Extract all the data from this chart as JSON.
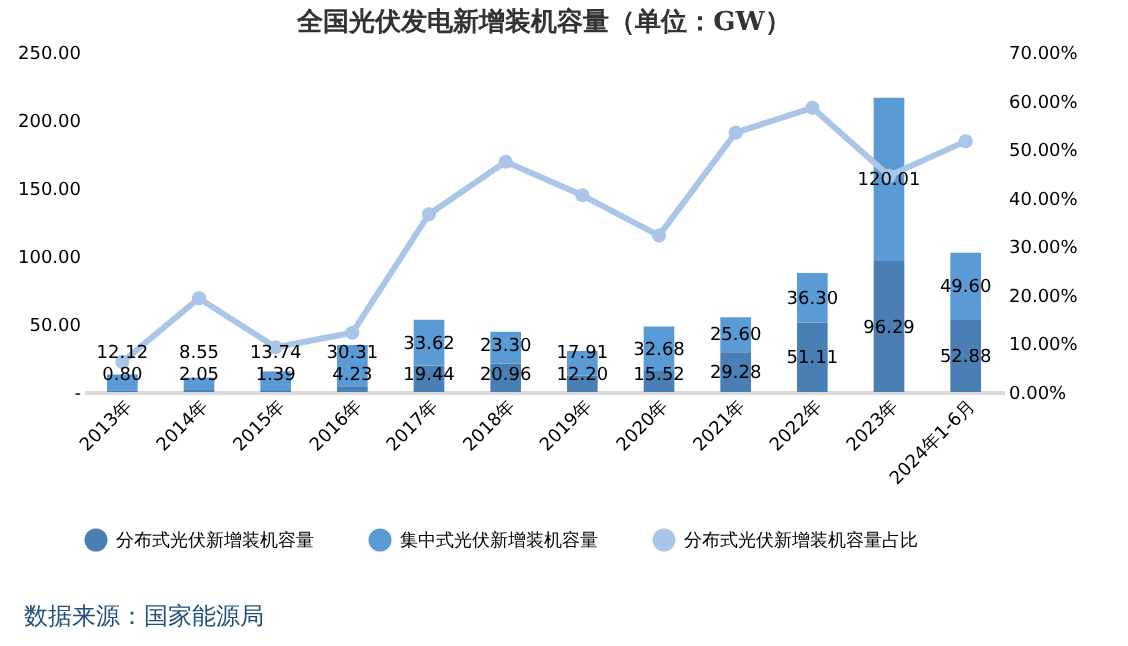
{
  "chart_data": {
    "type": "bar",
    "title": "全国光伏发电新增装机容量（单位：GW）",
    "categories": [
      "2013年",
      "2014年",
      "2015年",
      "2016年",
      "2017年",
      "2018年",
      "2019年",
      "2020年",
      "2021年",
      "2022年",
      "2023年",
      "2024年1-6月"
    ],
    "stacked": true,
    "series": [
      {
        "name": "分布式光伏新增装机容量",
        "color": "#4a7fb5",
        "values": [
          0.8,
          2.05,
          1.39,
          4.23,
          19.44,
          20.96,
          12.2,
          15.52,
          29.28,
          51.11,
          96.29,
          52.88
        ],
        "value_labels": [
          "0.80",
          "2.05",
          "1.39",
          "4.23",
          "19.44",
          "20.96",
          "12.20",
          "15.52",
          "29.28",
          "51.11",
          "96.29",
          "52.88"
        ]
      },
      {
        "name": "集中式光伏新增装机容量",
        "color": "#5b9bd5",
        "values": [
          12.12,
          8.55,
          13.74,
          30.31,
          33.62,
          23.3,
          17.91,
          32.68,
          25.6,
          36.3,
          120.01,
          49.6
        ],
        "value_labels": [
          "12.12",
          "8.55",
          "13.74",
          "30.31",
          "33.62",
          "23.30",
          "17.91",
          "32.68",
          "25.60",
          "36.30",
          "120.01",
          "49.60"
        ]
      },
      {
        "name": "分布式光伏新增装机容量占比",
        "color": "#a9c5e8",
        "type": "line",
        "axis": "y2",
        "marker": "circle",
        "values": [
          6.2,
          19.3,
          9.2,
          12.2,
          36.6,
          47.4,
          40.5,
          32.2,
          53.4,
          58.5,
          44.5,
          51.6
        ]
      }
    ],
    "ylim": [
      0,
      250
    ],
    "yticks": [
      {
        "value": 0,
        "label": "-"
      },
      {
        "value": 50,
        "label": "50.00"
      },
      {
        "value": 100,
        "label": "100.00"
      },
      {
        "value": 150,
        "label": "150.00"
      },
      {
        "value": 200,
        "label": "200.00"
      },
      {
        "value": 250,
        "label": "250.00"
      }
    ],
    "y2lim": [
      0,
      70
    ],
    "y2ticks": [
      {
        "value": 0,
        "label": "0.00%"
      },
      {
        "value": 10,
        "label": "10.00%"
      },
      {
        "value": 20,
        "label": "20.00%"
      },
      {
        "value": 30,
        "label": "30.00%"
      },
      {
        "value": 40,
        "label": "40.00%"
      },
      {
        "value": 50,
        "label": "50.00%"
      },
      {
        "value": 60,
        "label": "60.00%"
      },
      {
        "value": 70,
        "label": "70.00%"
      }
    ],
    "grid": false,
    "legend": "bottom",
    "annotations": [
      "数据来源：国家能源局"
    ]
  }
}
